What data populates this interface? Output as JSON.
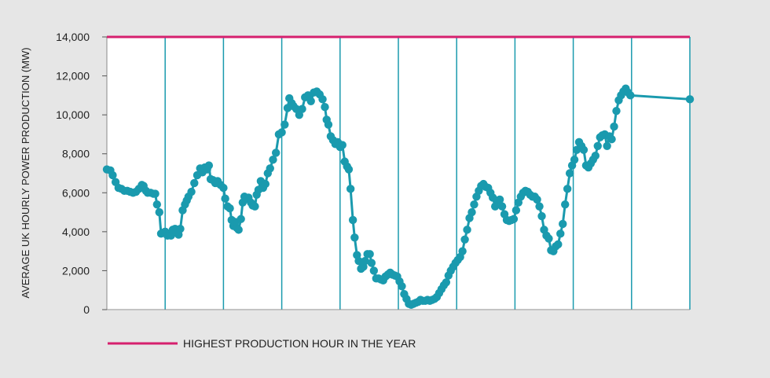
{
  "chart_data": {
    "type": "line",
    "title": "",
    "xlabel": "",
    "ylabel": "AVERAGE UK HOURLY POWER PRODUCTION (MW)",
    "ylim": [
      0,
      14000
    ],
    "yticks": [
      0,
      2000,
      4000,
      6000,
      8000,
      10000,
      12000,
      14000
    ],
    "ytick_labels": [
      "0",
      "2,000",
      "4,000",
      "6,000",
      "8,000",
      "10,000",
      "12,000",
      "14,000"
    ],
    "xlim": [
      0,
      100
    ],
    "x_vertical_gridlines": [
      10,
      20,
      30,
      40,
      50,
      60,
      70,
      80,
      90,
      100
    ],
    "grid": "vertical",
    "legend_position": "bottom-left",
    "colors": {
      "series": "#1a9aae",
      "reference": "#d6206e",
      "background": "#e6e6e6",
      "plot_bg": "#ffffff",
      "grid": "#1a9aae"
    },
    "series": [
      {
        "values": [
          [
            0,
            7200
          ],
          [
            0.6,
            7150
          ],
          [
            1.0,
            6900
          ],
          [
            1.5,
            6550
          ],
          [
            2.0,
            6250
          ],
          [
            2.5,
            6200
          ],
          [
            3.0,
            6100
          ],
          [
            3.5,
            6100
          ],
          [
            4.0,
            6050
          ],
          [
            4.5,
            6000
          ],
          [
            5.0,
            6050
          ],
          [
            5.5,
            6200
          ],
          [
            6.0,
            6400
          ],
          [
            6.3,
            6350
          ],
          [
            6.7,
            6100
          ],
          [
            7.0,
            6000
          ],
          [
            7.5,
            6000
          ],
          [
            8.0,
            5950
          ],
          [
            8.3,
            5950
          ],
          [
            8.6,
            5400
          ],
          [
            9.0,
            5000
          ],
          [
            9.3,
            3900
          ],
          [
            9.7,
            3950
          ],
          [
            10.0,
            4000
          ],
          [
            10.4,
            3800
          ],
          [
            10.7,
            3850
          ],
          [
            11.0,
            3800
          ],
          [
            11.3,
            4100
          ],
          [
            11.7,
            4150
          ],
          [
            12.0,
            3950
          ],
          [
            12.3,
            3850
          ],
          [
            12.6,
            4150
          ],
          [
            13.0,
            5100
          ],
          [
            13.4,
            5400
          ],
          [
            13.7,
            5600
          ],
          [
            14.0,
            5800
          ],
          [
            14.5,
            6050
          ],
          [
            15.0,
            6500
          ],
          [
            15.5,
            6900
          ],
          [
            16.0,
            7250
          ],
          [
            16.4,
            7050
          ],
          [
            16.8,
            7300
          ],
          [
            17.2,
            7200
          ],
          [
            17.5,
            7400
          ],
          [
            17.8,
            6700
          ],
          [
            18.2,
            6650
          ],
          [
            18.6,
            6500
          ],
          [
            19.0,
            6600
          ],
          [
            19.5,
            6400
          ],
          [
            20.0,
            6250
          ],
          [
            20.3,
            5700
          ],
          [
            20.7,
            5300
          ],
          [
            21.1,
            5200
          ],
          [
            21.4,
            4600
          ],
          [
            21.7,
            4300
          ],
          [
            22.0,
            4500
          ],
          [
            22.3,
            4200
          ],
          [
            22.6,
            4100
          ],
          [
            23.0,
            4650
          ],
          [
            23.3,
            5500
          ],
          [
            23.6,
            5800
          ],
          [
            24.0,
            5700
          ],
          [
            24.3,
            5750
          ],
          [
            24.7,
            5500
          ],
          [
            25.0,
            5350
          ],
          [
            25.4,
            5300
          ],
          [
            25.7,
            5900
          ],
          [
            26.0,
            6150
          ],
          [
            26.4,
            6600
          ],
          [
            26.8,
            6250
          ],
          [
            27.2,
            6450
          ],
          [
            27.6,
            7000
          ],
          [
            28.0,
            7250
          ],
          [
            28.5,
            7700
          ],
          [
            29.0,
            8050
          ],
          [
            29.5,
            9000
          ],
          [
            30.0,
            9100
          ],
          [
            30.5,
            9500
          ],
          [
            31.0,
            10350
          ],
          [
            31.3,
            10850
          ],
          [
            31.7,
            10600
          ],
          [
            32.0,
            10450
          ],
          [
            32.5,
            10300
          ],
          [
            33.0,
            10000
          ],
          [
            33.5,
            10300
          ],
          [
            34.0,
            10900
          ],
          [
            34.5,
            11000
          ],
          [
            35.0,
            10700
          ],
          [
            35.5,
            11150
          ],
          [
            36.0,
            11200
          ],
          [
            36.5,
            11050
          ],
          [
            37.0,
            10800
          ],
          [
            37.4,
            10400
          ],
          [
            37.7,
            9750
          ],
          [
            38.0,
            9500
          ],
          [
            38.4,
            8900
          ],
          [
            38.8,
            8700
          ],
          [
            39.2,
            8500
          ],
          [
            39.6,
            8600
          ],
          [
            40.0,
            8350
          ],
          [
            40.4,
            8450
          ],
          [
            40.8,
            7600
          ],
          [
            41.2,
            7350
          ],
          [
            41.5,
            7200
          ],
          [
            41.8,
            6200
          ],
          [
            42.2,
            4600
          ],
          [
            42.5,
            3700
          ],
          [
            42.9,
            2800
          ],
          [
            43.2,
            2500
          ],
          [
            43.6,
            2100
          ],
          [
            44.0,
            2200
          ],
          [
            44.3,
            2500
          ],
          [
            44.7,
            2850
          ],
          [
            45.1,
            2850
          ],
          [
            45.4,
            2400
          ],
          [
            45.8,
            2000
          ],
          [
            46.2,
            1600
          ],
          [
            46.6,
            1600
          ],
          [
            47.0,
            1550
          ],
          [
            47.4,
            1500
          ],
          [
            47.8,
            1700
          ],
          [
            48.2,
            1800
          ],
          [
            48.6,
            1900
          ],
          [
            49.0,
            1800
          ],
          [
            49.4,
            1750
          ],
          [
            49.8,
            1700
          ],
          [
            50.2,
            1450
          ],
          [
            50.6,
            1200
          ],
          [
            51.0,
            800
          ],
          [
            51.4,
            550
          ],
          [
            51.8,
            300
          ],
          [
            52.2,
            250
          ],
          [
            52.6,
            300
          ],
          [
            53.0,
            350
          ],
          [
            53.4,
            400
          ],
          [
            53.8,
            500
          ],
          [
            54.2,
            450
          ],
          [
            54.6,
            450
          ],
          [
            55.0,
            500
          ],
          [
            55.4,
            450
          ],
          [
            55.8,
            500
          ],
          [
            56.2,
            550
          ],
          [
            56.6,
            650
          ],
          [
            57.0,
            850
          ],
          [
            57.4,
            1050
          ],
          [
            57.8,
            1250
          ],
          [
            58.2,
            1400
          ],
          [
            58.6,
            1750
          ],
          [
            59.0,
            2000
          ],
          [
            59.4,
            2200
          ],
          [
            59.8,
            2400
          ],
          [
            60.2,
            2550
          ],
          [
            60.6,
            2700
          ],
          [
            61.0,
            3000
          ],
          [
            61.4,
            3600
          ],
          [
            61.8,
            4100
          ],
          [
            62.2,
            4700
          ],
          [
            62.6,
            5000
          ],
          [
            63.0,
            5400
          ],
          [
            63.4,
            5800
          ],
          [
            63.8,
            6100
          ],
          [
            64.2,
            6350
          ],
          [
            64.6,
            6450
          ],
          [
            65.0,
            6300
          ],
          [
            65.4,
            6250
          ],
          [
            65.8,
            6000
          ],
          [
            66.2,
            5750
          ],
          [
            66.6,
            5300
          ],
          [
            67.0,
            5600
          ],
          [
            67.4,
            5650
          ],
          [
            67.8,
            5300
          ],
          [
            68.2,
            4900
          ],
          [
            68.6,
            4600
          ],
          [
            69.0,
            4550
          ],
          [
            69.4,
            4600
          ],
          [
            69.8,
            4650
          ],
          [
            70.2,
            5100
          ],
          [
            70.6,
            5500
          ],
          [
            71.0,
            5800
          ],
          [
            71.4,
            6000
          ],
          [
            71.8,
            6100
          ],
          [
            72.2,
            6050
          ],
          [
            72.6,
            5900
          ],
          [
            73.0,
            5800
          ],
          [
            73.4,
            5800
          ],
          [
            73.8,
            5650
          ],
          [
            74.2,
            5300
          ],
          [
            74.6,
            4800
          ],
          [
            75.0,
            4100
          ],
          [
            75.4,
            3800
          ],
          [
            75.8,
            3650
          ],
          [
            76.2,
            3050
          ],
          [
            76.6,
            3000
          ],
          [
            77.0,
            3250
          ],
          [
            77.4,
            3350
          ],
          [
            77.8,
            3900
          ],
          [
            78.2,
            4400
          ],
          [
            78.6,
            5400
          ],
          [
            79.0,
            6200
          ],
          [
            79.4,
            7000
          ],
          [
            79.8,
            7400
          ],
          [
            80.2,
            7700
          ],
          [
            80.6,
            8200
          ],
          [
            81.0,
            8600
          ],
          [
            81.4,
            8400
          ],
          [
            81.8,
            8200
          ],
          [
            82.2,
            7400
          ],
          [
            82.6,
            7300
          ],
          [
            83.0,
            7500
          ],
          [
            83.4,
            7700
          ],
          [
            83.8,
            7900
          ],
          [
            84.2,
            8400
          ],
          [
            84.6,
            8850
          ],
          [
            85.0,
            8950
          ],
          [
            85.4,
            9000
          ],
          [
            85.8,
            8400
          ],
          [
            86.2,
            8900
          ],
          [
            86.6,
            8750
          ],
          [
            87.0,
            9400
          ],
          [
            87.4,
            10200
          ],
          [
            87.8,
            10750
          ],
          [
            88.2,
            11000
          ],
          [
            88.6,
            11200
          ],
          [
            89.0,
            11350
          ],
          [
            89.4,
            11150
          ],
          [
            89.8,
            11000
          ],
          [
            100,
            10800
          ]
        ]
      }
    ],
    "reference_line": {
      "y": 14000,
      "label": "HIGHEST PRODUCTION HOUR IN THE YEAR"
    }
  }
}
